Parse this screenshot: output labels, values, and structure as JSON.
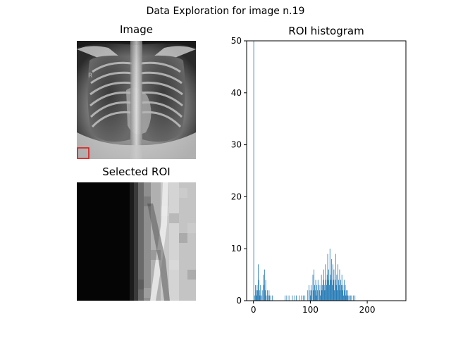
{
  "figure": {
    "suptitle": "Data Exploration for image n.19",
    "image_title": "Image",
    "roi_title": "Selected ROI",
    "histogram_title": "ROI histogram",
    "xray_marker_text": "R"
  },
  "chart_data": {
    "type": "bar",
    "title": "ROI histogram",
    "xlabel": "",
    "ylabel": "",
    "xlim": [
      -12,
      268
    ],
    "ylim": [
      0,
      50
    ],
    "x_ticks": [
      0,
      100,
      200
    ],
    "y_ticks": [
      0,
      10,
      20,
      30,
      40,
      50
    ],
    "grid": false,
    "bar_color": "#1f77b4",
    "bins": [
      {
        "x": 0,
        "v": 50
      },
      {
        "x": 2,
        "v": 1
      },
      {
        "x": 3,
        "v": 3
      },
      {
        "x": 4,
        "v": 2
      },
      {
        "x": 5,
        "v": 1
      },
      {
        "x": 6,
        "v": 3
      },
      {
        "x": 7,
        "v": 2
      },
      {
        "x": 8,
        "v": 7
      },
      {
        "x": 9,
        "v": 4
      },
      {
        "x": 10,
        "v": 2
      },
      {
        "x": 11,
        "v": 1
      },
      {
        "x": 12,
        "v": 3
      },
      {
        "x": 14,
        "v": 1
      },
      {
        "x": 15,
        "v": 2
      },
      {
        "x": 17,
        "v": 5
      },
      {
        "x": 18,
        "v": 3
      },
      {
        "x": 19,
        "v": 6
      },
      {
        "x": 20,
        "v": 2
      },
      {
        "x": 21,
        "v": 4
      },
      {
        "x": 22,
        "v": 1
      },
      {
        "x": 24,
        "v": 2
      },
      {
        "x": 25,
        "v": 1
      },
      {
        "x": 27,
        "v": 2
      },
      {
        "x": 28,
        "v": 1
      },
      {
        "x": 30,
        "v": 1
      },
      {
        "x": 33,
        "v": 1
      },
      {
        "x": 55,
        "v": 1
      },
      {
        "x": 58,
        "v": 1
      },
      {
        "x": 62,
        "v": 1
      },
      {
        "x": 68,
        "v": 1
      },
      {
        "x": 72,
        "v": 1
      },
      {
        "x": 75,
        "v": 1
      },
      {
        "x": 80,
        "v": 1
      },
      {
        "x": 84,
        "v": 1
      },
      {
        "x": 87,
        "v": 1
      },
      {
        "x": 90,
        "v": 1
      },
      {
        "x": 95,
        "v": 2
      },
      {
        "x": 97,
        "v": 3
      },
      {
        "x": 99,
        "v": 2
      },
      {
        "x": 100,
        "v": 1
      },
      {
        "x": 101,
        "v": 3
      },
      {
        "x": 102,
        "v": 2
      },
      {
        "x": 104,
        "v": 5
      },
      {
        "x": 105,
        "v": 2
      },
      {
        "x": 106,
        "v": 6
      },
      {
        "x": 107,
        "v": 3
      },
      {
        "x": 108,
        "v": 2
      },
      {
        "x": 109,
        "v": 4
      },
      {
        "x": 110,
        "v": 1
      },
      {
        "x": 111,
        "v": 3
      },
      {
        "x": 112,
        "v": 2
      },
      {
        "x": 113,
        "v": 4
      },
      {
        "x": 115,
        "v": 3
      },
      {
        "x": 116,
        "v": 2
      },
      {
        "x": 117,
        "v": 1
      },
      {
        "x": 118,
        "v": 3
      },
      {
        "x": 119,
        "v": 5
      },
      {
        "x": 120,
        "v": 2
      },
      {
        "x": 121,
        "v": 3
      },
      {
        "x": 122,
        "v": 4
      },
      {
        "x": 123,
        "v": 6
      },
      {
        "x": 124,
        "v": 3
      },
      {
        "x": 125,
        "v": 2
      },
      {
        "x": 126,
        "v": 7
      },
      {
        "x": 127,
        "v": 4
      },
      {
        "x": 128,
        "v": 3
      },
      {
        "x": 129,
        "v": 5
      },
      {
        "x": 130,
        "v": 9
      },
      {
        "x": 131,
        "v": 4
      },
      {
        "x": 132,
        "v": 6
      },
      {
        "x": 133,
        "v": 3
      },
      {
        "x": 134,
        "v": 10
      },
      {
        "x": 135,
        "v": 5
      },
      {
        "x": 136,
        "v": 4
      },
      {
        "x": 137,
        "v": 8
      },
      {
        "x": 138,
        "v": 3
      },
      {
        "x": 139,
        "v": 7
      },
      {
        "x": 140,
        "v": 4
      },
      {
        "x": 141,
        "v": 6
      },
      {
        "x": 142,
        "v": 2
      },
      {
        "x": 143,
        "v": 4
      },
      {
        "x": 144,
        "v": 9
      },
      {
        "x": 145,
        "v": 3
      },
      {
        "x": 146,
        "v": 5
      },
      {
        "x": 147,
        "v": 2
      },
      {
        "x": 148,
        "v": 7
      },
      {
        "x": 149,
        "v": 4
      },
      {
        "x": 150,
        "v": 3
      },
      {
        "x": 151,
        "v": 6
      },
      {
        "x": 152,
        "v": 2
      },
      {
        "x": 153,
        "v": 4
      },
      {
        "x": 154,
        "v": 3
      },
      {
        "x": 155,
        "v": 5
      },
      {
        "x": 156,
        "v": 2
      },
      {
        "x": 157,
        "v": 3
      },
      {
        "x": 158,
        "v": 1
      },
      {
        "x": 159,
        "v": 4
      },
      {
        "x": 160,
        "v": 2
      },
      {
        "x": 161,
        "v": 3
      },
      {
        "x": 162,
        "v": 1
      },
      {
        "x": 163,
        "v": 2
      },
      {
        "x": 164,
        "v": 1
      },
      {
        "x": 165,
        "v": 2
      },
      {
        "x": 166,
        "v": 1
      },
      {
        "x": 168,
        "v": 1
      },
      {
        "x": 170,
        "v": 1
      },
      {
        "x": 172,
        "v": 1
      },
      {
        "x": 175,
        "v": 1
      },
      {
        "x": 178,
        "v": 1
      }
    ]
  }
}
